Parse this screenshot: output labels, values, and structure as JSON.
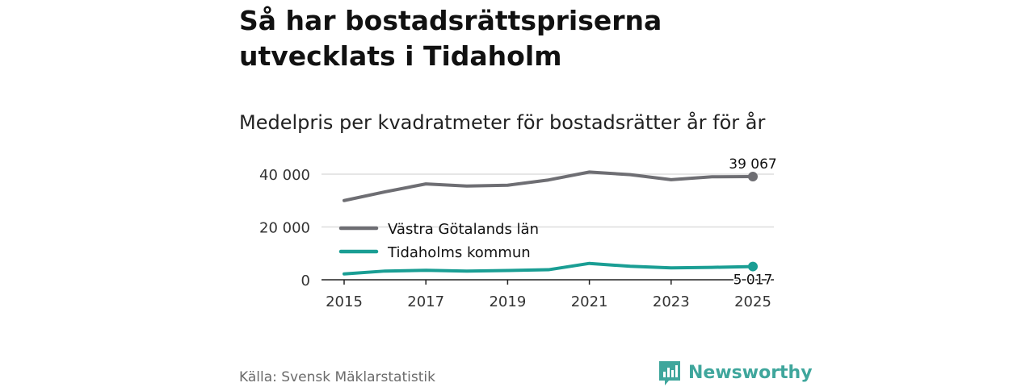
{
  "title": "Så har bostadsrättspriserna utvecklats i Tidaholm",
  "subtitle": "Medelpris per kvadratmeter för bostadsrätter år för år",
  "source": "Källa: Svensk Mäklarstatistik",
  "brand": {
    "name": "Newsworthy",
    "color": "#3fa69c"
  },
  "chart_data": {
    "type": "line",
    "x": [
      2015,
      2016,
      2017,
      2018,
      2019,
      2020,
      2021,
      2022,
      2023,
      2024,
      2025
    ],
    "xticks": [
      "2015",
      "2017",
      "2019",
      "2021",
      "2023",
      "2025"
    ],
    "yticks": [
      "0",
      "20 000",
      "40 000"
    ],
    "ylim": [
      0,
      40000
    ],
    "series": [
      {
        "name": "Västra Götalands län",
        "color": "#6e6e73",
        "values": [
          30000,
          33300,
          36300,
          35500,
          35800,
          37800,
          40800,
          39800,
          37900,
          39000,
          39067
        ],
        "end_label": "39 067"
      },
      {
        "name": "Tidaholms kommun",
        "color": "#1a9e94",
        "values": [
          2200,
          3300,
          3600,
          3300,
          3500,
          3800,
          6200,
          5100,
          4500,
          4700,
          5017
        ],
        "end_label": "5 017"
      }
    ],
    "legend": "center-left inside plot",
    "xlabel": "",
    "ylabel": ""
  }
}
